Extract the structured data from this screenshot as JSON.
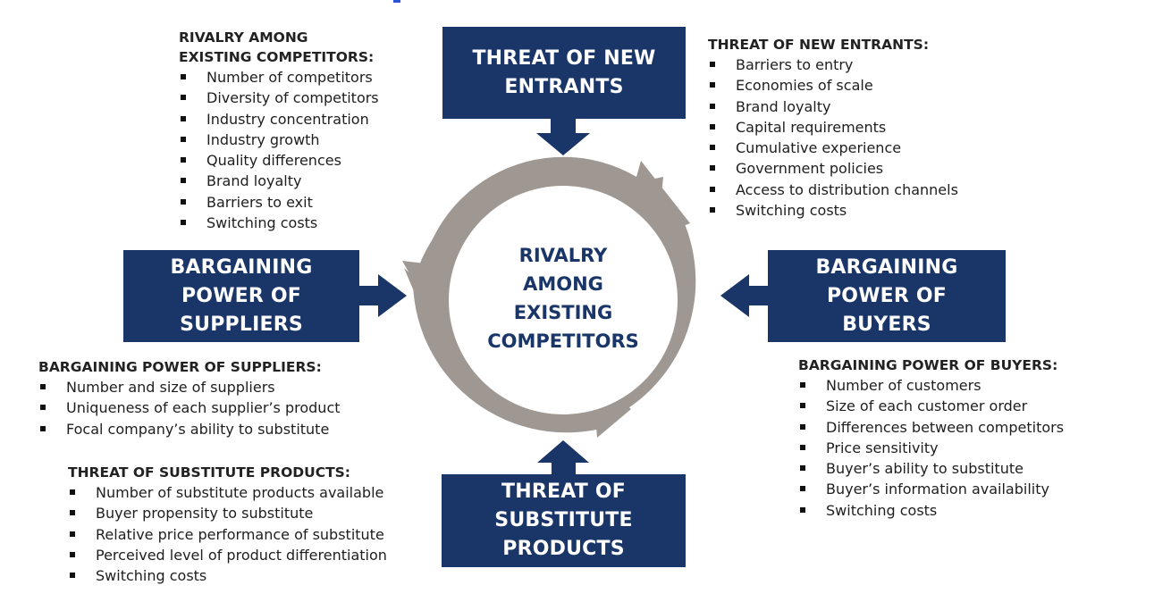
{
  "forces": {
    "new_entrants": [
      "THREAT OF NEW",
      "ENTRANTS"
    ],
    "suppliers": [
      "BARGAINING",
      "POWER OF",
      "SUPPLIERS"
    ],
    "buyers": [
      "BARGAINING",
      "POWER OF",
      "BUYERS"
    ],
    "substitutes": [
      "THREAT OF",
      "SUBSTITUTE",
      "PRODUCTS"
    ],
    "center": [
      "RIVALRY",
      "AMONG",
      "EXISTING",
      "COMPETITORS"
    ]
  },
  "lists": {
    "rivalry": {
      "title": [
        "RIVALRY AMONG",
        "EXISTING COMPETITORS:"
      ],
      "items": [
        "Number of competitors",
        "Diversity of competitors",
        "Industry concentration",
        "Industry growth",
        "Quality differences",
        "Brand loyalty",
        "Barriers to exit",
        "Switching costs"
      ]
    },
    "new_entrants": {
      "title": [
        "THREAT OF NEW ENTRANTS:"
      ],
      "items": [
        "Barriers to entry",
        "Economies of scale",
        "Brand loyalty",
        "Capital requirements",
        "Cumulative experience",
        "Government policies",
        "Access to distribution channels",
        "Switching costs"
      ]
    },
    "suppliers": {
      "title": [
        "BARGAINING POWER OF SUPPLIERS:"
      ],
      "items": [
        "Number  and size of suppliers",
        "Uniqueness of each supplier’s product",
        "Focal company’s ability to substitute"
      ]
    },
    "substitutes": {
      "title": [
        "THREAT OF SUBSTITUTE PRODUCTS:"
      ],
      "items": [
        "Number of substitute products available",
        "Buyer propensity to substitute",
        "Relative price performance of substitute",
        "Perceived level of product differentiation",
        "Switching costs"
      ]
    },
    "buyers": {
      "title": [
        "BARGAINING POWER OF BUYERS:"
      ],
      "items": [
        "Number of customers",
        "Size of each customer order",
        "Differences between competitors",
        "Price sensitivity",
        "Buyer’s ability to substitute",
        "Buyer’s information availability",
        "Switching costs"
      ]
    }
  },
  "colors": {
    "box_fill": "#1a3668",
    "cycle_arrow": "#9e9792",
    "center_text": "#1a3668"
  }
}
